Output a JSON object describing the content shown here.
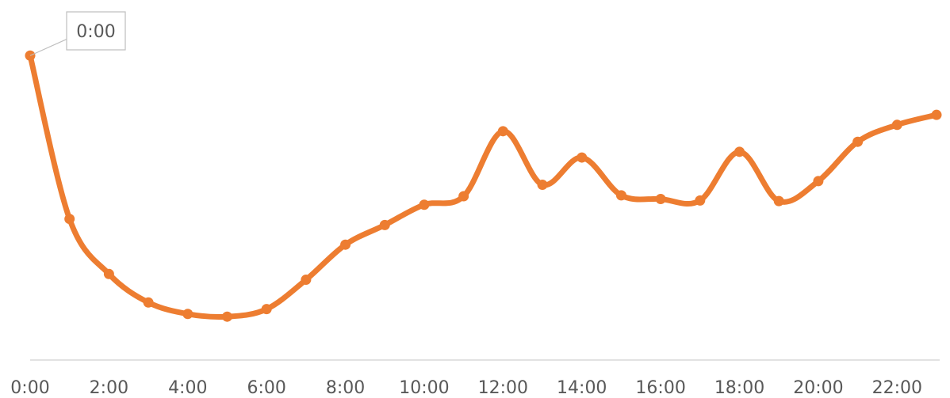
{
  "chart_data": {
    "type": "line",
    "title": "",
    "xlabel": "",
    "ylabel": "",
    "x": [
      "0:00",
      "1:00",
      "2:00",
      "3:00",
      "4:00",
      "5:00",
      "6:00",
      "7:00",
      "8:00",
      "9:00",
      "10:00",
      "11:00",
      "12:00",
      "13:00",
      "14:00",
      "15:00",
      "16:00",
      "17:00",
      "18:00",
      "19:00",
      "20:00",
      "21:00",
      "22:00",
      "23:00"
    ],
    "tick_labels": [
      "0:00",
      "2:00",
      "4:00",
      "6:00",
      "8:00",
      "10:00",
      "12:00",
      "14:00",
      "16:00",
      "18:00",
      "20:00",
      "22:00"
    ],
    "series": [
      {
        "values": [
          100,
          46,
          27.8,
          18.4,
          14.6,
          13.7,
          16.2,
          25.9,
          37.5,
          44,
          50.7,
          53.5,
          75,
          57.3,
          66.3,
          53.8,
          52.6,
          52.1,
          68.2,
          51.9,
          58.5,
          71.5,
          77.1,
          80.4
        ],
        "color": "#ED7D31"
      }
    ],
    "ylim": [
      -9,
      110
    ],
    "grid": false,
    "legend": "none",
    "annotations": [
      {
        "point_index": 0,
        "text": "0:00"
      }
    ],
    "colors": {
      "line": "#ED7D31",
      "axis": "#D9D9D9",
      "text": "#595959",
      "callout_border": "#BFBFBF"
    }
  }
}
